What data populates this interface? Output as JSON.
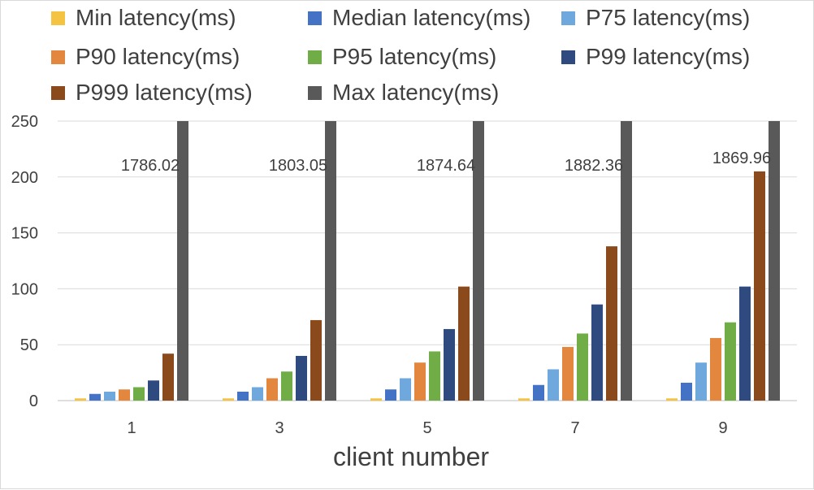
{
  "chart_data": {
    "type": "bar",
    "categories": [
      "1",
      "3",
      "5",
      "7",
      "9"
    ],
    "xlabel": "client number",
    "ylabel": "",
    "ylim": [
      0,
      250
    ],
    "yticks": [
      0,
      50,
      100,
      150,
      200,
      250
    ],
    "grid": true,
    "legend_position": "top",
    "series": [
      {
        "name": "Min latency(ms)",
        "color": "#f5c342",
        "values": [
          2,
          2,
          2,
          2,
          2
        ]
      },
      {
        "name": "Median latency(ms)",
        "color": "#4472c4",
        "values": [
          6,
          8,
          10,
          14,
          16
        ]
      },
      {
        "name": "P75 latency(ms)",
        "color": "#6fa8dc",
        "values": [
          8,
          12,
          20,
          28,
          34
        ]
      },
      {
        "name": "P90 latency(ms)",
        "color": "#e3873f",
        "values": [
          10,
          20,
          34,
          48,
          56
        ]
      },
      {
        "name": "P95 latency(ms)",
        "color": "#70ad47",
        "values": [
          12,
          26,
          44,
          60,
          70
        ]
      },
      {
        "name": "P99 latency(ms)",
        "color": "#2f4a7f",
        "values": [
          18,
          40,
          64,
          86,
          102
        ]
      },
      {
        "name": "P999 latency(ms)",
        "color": "#8b4a1c",
        "values": [
          42,
          72,
          102,
          138,
          205
        ]
      },
      {
        "name": "Max latency(ms)",
        "color": "#595959",
        "values": [
          1786.02,
          1803.05,
          1874.64,
          1882.36,
          1869.96
        ]
      }
    ],
    "data_labels": [
      "1786.02",
      "1803.05",
      "1874.64",
      "1882.36",
      "1869.96"
    ]
  }
}
